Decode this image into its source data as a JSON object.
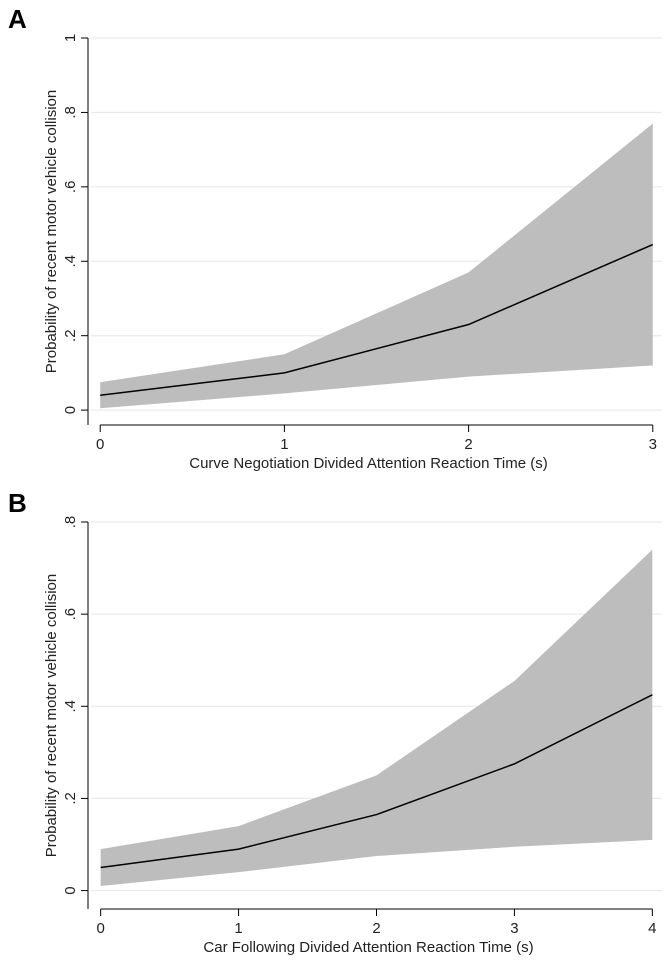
{
  "chart_data": [
    {
      "type": "line",
      "panel": "A",
      "x_label": "Curve Negotiation Divided Attention Reaction Time (s)",
      "y_label": "Probability of recent motor vehicle collision",
      "x": [
        0,
        1,
        2,
        3
      ],
      "values": [
        0.04,
        0.1,
        0.23,
        0.445
      ],
      "ci_lower": [
        0.005,
        0.045,
        0.09,
        0.12
      ],
      "ci_upper": [
        0.075,
        0.15,
        0.37,
        0.77
      ],
      "color": "#000000",
      "band_color": "#bdbdbd",
      "xlim": [
        -0.05,
        3.05
      ],
      "xticks": [
        0,
        1,
        2,
        3
      ],
      "ylim": [
        -0.04,
        1
      ],
      "yticks": [
        0,
        {
          "value": 0.2,
          "label": ".2"
        },
        {
          "value": 0.4,
          "label": ".4"
        },
        {
          "value": 0.6,
          "label": ".6"
        },
        {
          "value": 0.8,
          "label": ".8"
        },
        1
      ],
      "grid": true
    },
    {
      "type": "line",
      "panel": "B",
      "x_label": "Car Following Divided Attention Reaction Time (s)",
      "y_label": "Probability of recent motor vehicle collision",
      "x": [
        0,
        1,
        2,
        3,
        4
      ],
      "values": [
        0.05,
        0.09,
        0.165,
        0.275,
        0.425
      ],
      "ci_lower": [
        0.01,
        0.04,
        0.075,
        0.095,
        0.11
      ],
      "ci_upper": [
        0.09,
        0.14,
        0.25,
        0.455,
        0.74
      ],
      "color": "#000000",
      "band_color": "#bdbdbd",
      "xlim": [
        -0.07,
        4.07
      ],
      "xticks": [
        0,
        1,
        2,
        3,
        4
      ],
      "ylim": [
        -0.04,
        0.8
      ],
      "yticks": [
        0,
        {
          "value": 0.2,
          "label": ".2"
        },
        {
          "value": 0.4,
          "label": ".4"
        },
        {
          "value": 0.6,
          "label": ".6"
        },
        {
          "value": 0.8,
          "label": ".8"
        }
      ],
      "grid": true
    }
  ]
}
